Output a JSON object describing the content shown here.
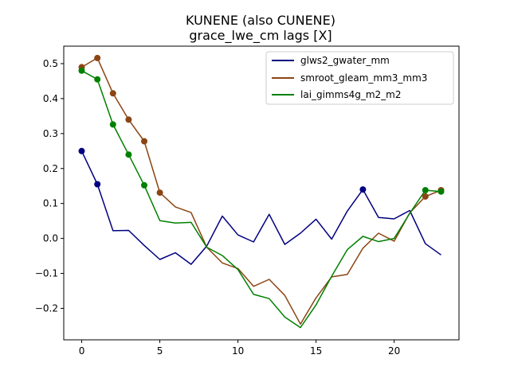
{
  "chart_data": {
    "type": "line",
    "title": "KUNENE (also CUNENE)",
    "subtitle": "grace_lwe_cm lags [X]",
    "xlabel": "",
    "ylabel": "",
    "xlim": [
      -1.15,
      24.15
    ],
    "ylim": [
      -0.29,
      0.55
    ],
    "xticks": [
      0,
      5,
      10,
      15,
      20
    ],
    "yticks": [
      -0.2,
      -0.1,
      0.0,
      0.1,
      0.2,
      0.3,
      0.4,
      0.5
    ],
    "ytick_labels": [
      "−0.2",
      "−0.1",
      "0.0",
      "0.1",
      "0.2",
      "0.3",
      "0.4",
      "0.5"
    ],
    "grid": false,
    "legend_position": "top-right",
    "x": [
      0,
      1,
      2,
      3,
      4,
      5,
      6,
      7,
      8,
      9,
      10,
      11,
      12,
      13,
      14,
      15,
      16,
      17,
      18,
      19,
      20,
      21,
      22,
      23
    ],
    "series": [
      {
        "name": "glws2_gwater_mm",
        "color": "#000080",
        "values": [
          0.25,
          0.155,
          0.022,
          0.023,
          -0.02,
          -0.06,
          -0.041,
          -0.074,
          -0.022,
          0.064,
          0.01,
          -0.01,
          0.069,
          -0.017,
          0.015,
          0.055,
          -0.002,
          0.078,
          0.14,
          0.06,
          0.056,
          0.08,
          -0.015,
          -0.047
        ],
        "markers": [
          0,
          1,
          18
        ]
      },
      {
        "name": "smroot_gleam_mm3_mm3",
        "color": "#8B4513",
        "values": [
          0.49,
          0.516,
          0.415,
          0.34,
          0.278,
          0.131,
          0.09,
          0.074,
          -0.025,
          -0.07,
          -0.086,
          -0.137,
          -0.117,
          -0.163,
          -0.245,
          -0.17,
          -0.11,
          -0.103,
          -0.028,
          0.015,
          -0.008,
          0.073,
          0.12,
          0.138
        ],
        "markers": [
          0,
          1,
          2,
          3,
          4,
          5,
          22,
          23
        ]
      },
      {
        "name": "lai_gimms4g_m2_m2",
        "color": "#008000",
        "values": [
          0.48,
          0.455,
          0.326,
          0.24,
          0.152,
          0.051,
          0.044,
          0.046,
          -0.025,
          -0.049,
          -0.089,
          -0.16,
          -0.172,
          -0.225,
          -0.255,
          -0.19,
          -0.108,
          -0.032,
          0.006,
          -0.009,
          0.0,
          0.072,
          0.138,
          0.134
        ],
        "markers": [
          0,
          1,
          2,
          3,
          4,
          22,
          23
        ]
      }
    ]
  }
}
